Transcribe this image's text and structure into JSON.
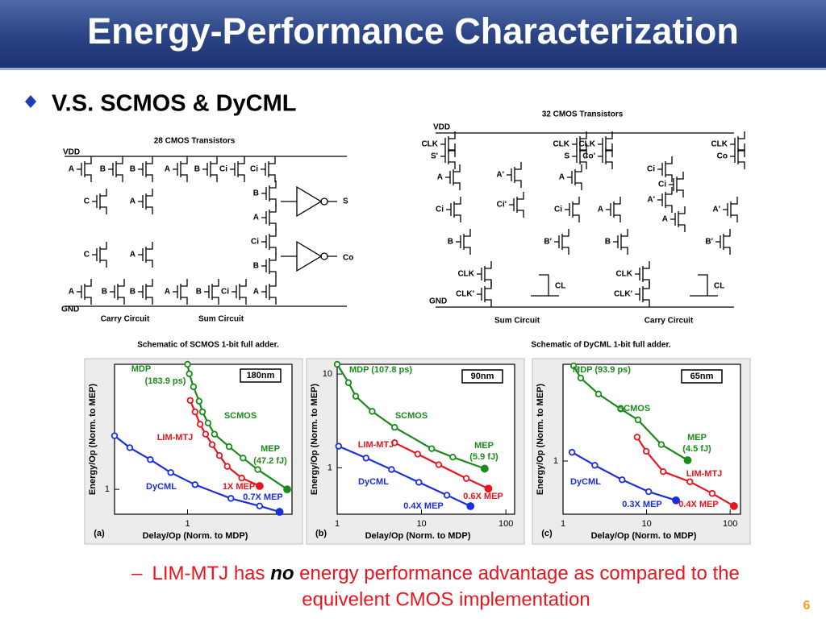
{
  "title": "Energy-Performance Characterization",
  "bullet": "V.S. SCMOS & DyCML",
  "schematics": [
    {
      "title": "28 CMOS Transistors",
      "vdd": "VDD",
      "gnd": "GND",
      "labels": [
        "A",
        "B",
        "B",
        "A",
        "B",
        "Ci",
        "Ci",
        "C",
        "A",
        "B",
        "A",
        "Ci",
        "B",
        "C",
        "A",
        "A",
        "B",
        "B",
        "A",
        "B",
        "Ci",
        "A"
      ],
      "outputs": [
        "S",
        "Co"
      ],
      "loads": [],
      "sections": [
        "Carry Circuit",
        "Sum Circuit"
      ],
      "caption": "Schematic of SCMOS 1-bit full adder."
    },
    {
      "title": "32 CMOS Transistors",
      "vdd": "VDD",
      "gnd": "GND",
      "labels": [
        "CLK",
        "S'",
        "CLK",
        "S",
        "CLK",
        "Co'",
        "CLK",
        "Co",
        "A",
        "A'",
        "A",
        "Ci",
        "Ci'",
        "Ci",
        "Ci",
        "Ci",
        "A'",
        "A",
        "A",
        "A'",
        "B",
        "B'",
        "B",
        "B'",
        "CLK",
        "CLK'",
        "CLK",
        "CLK'"
      ],
      "outputs": [],
      "loads": [
        "CL",
        "CL"
      ],
      "sections": [
        "Sum Circuit",
        "Carry Circuit"
      ],
      "caption": "Schematic of DyCML 1-bit full adder."
    }
  ],
  "chart_data": [
    {
      "type": "line",
      "panel": "(a)",
      "badge": "180nm",
      "x_label": "Delay/Op (Norm. to MDP)",
      "y_label": "Energy/Op (Norm. to MEP)",
      "xlog": true,
      "ylog": true,
      "xlim": [
        0.2,
        10
      ],
      "ylim": [
        0.6,
        13
      ],
      "xticks": [
        1
      ],
      "yticks": [
        1
      ],
      "annotations": [
        "MDP",
        "(183.9 ps)",
        "MEP",
        "(47.2 fJ)",
        "1X MEP",
        "0.7X MEP"
      ],
      "series": [
        {
          "name": "SCMOS",
          "color": "#1a8a1a",
          "x": [
            1.0,
            1.04,
            1.14,
            1.29,
            1.39,
            1.57,
            1.81,
            2.5,
            3.4,
            4.7,
            9.0
          ],
          "values": [
            13,
            10.7,
            8.2,
            6.1,
            4.9,
            3.9,
            3.1,
            2.4,
            1.9,
            1.5,
            1.0
          ]
        },
        {
          "name": "LIM-MTJ",
          "color": "#e8141e",
          "x": [
            1.06,
            1.18,
            1.32,
            1.49,
            1.72,
            2.02,
            2.4,
            3.3,
            4.9
          ],
          "values": [
            6.2,
            4.9,
            3.8,
            3.1,
            2.5,
            2.0,
            1.6,
            1.26,
            1.07
          ]
        },
        {
          "name": "DyCML",
          "color": "#1a2de0",
          "x": [
            0.2,
            0.28,
            0.44,
            0.69,
            1.18,
            2.6,
            4.9,
            7.6
          ],
          "values": [
            3.0,
            2.35,
            1.84,
            1.41,
            1.1,
            0.83,
            0.71,
            0.63
          ]
        }
      ]
    },
    {
      "type": "line",
      "panel": "(b)",
      "badge": "90nm",
      "x_label": "Delay/Op (Norm. to MDP)",
      "y_label": "Energy/Op (Norm. to MEP)",
      "xlog": true,
      "ylog": true,
      "xlim": [
        1,
        127
      ],
      "ylim": [
        0.32,
        12.7
      ],
      "xticks": [
        1,
        10,
        100
      ],
      "yticks": [
        1,
        10
      ],
      "annotations": [
        "MDP (107.8 ps)",
        "MEP",
        "(5.9 fJ)",
        "0.6X MEP",
        "0.4X MEP"
      ],
      "series": [
        {
          "name": "SCMOS",
          "color": "#1a8a1a",
          "x": [
            1,
            1.36,
            1.66,
            2.6,
            4.8,
            13.2,
            23.5,
            56
          ],
          "values": [
            12.7,
            8.1,
            5.8,
            4.0,
            2.7,
            1.6,
            1.3,
            0.98
          ]
        },
        {
          "name": "LIM-MTJ",
          "color": "#e8141e",
          "x": [
            4.8,
            9.0,
            16,
            34,
            62
          ],
          "values": [
            1.85,
            1.4,
            1.08,
            0.77,
            0.6
          ]
        },
        {
          "name": "DyCML",
          "color": "#1a2de0",
          "x": [
            1.04,
            2.2,
            4.4,
            9.3,
            20,
            38
          ],
          "values": [
            1.7,
            1.27,
            0.96,
            0.7,
            0.51,
            0.39
          ]
        }
      ]
    },
    {
      "type": "line",
      "panel": "(c)",
      "badge": "65nm",
      "x_label": "Delay/Op (Norm. to MDP)",
      "y_label": "Energy/Op (Norm. to MEP)",
      "xlog": true,
      "ylog": true,
      "xlim": [
        1,
        133
      ],
      "ylim": [
        0.27,
        10.8
      ],
      "xticks": [
        1,
        10,
        100
      ],
      "yticks": [
        1
      ],
      "annotations": [
        "MDP (93.9 ps)",
        "MEP",
        "(4.5 fJ)",
        "0.3X MEP",
        "0.4X MEP"
      ],
      "series": [
        {
          "name": "SCMOS",
          "color": "#1a8a1a",
          "x": [
            1.34,
            1.63,
            2.66,
            4.9,
            7.9,
            15,
            31
          ],
          "values": [
            10.4,
            7.7,
            5.2,
            3.6,
            2.75,
            1.5,
            1.02
          ]
        },
        {
          "name": "LIM-MTJ",
          "color": "#e8141e",
          "x": [
            7.7,
            9.9,
            15.8,
            33,
            61,
            111
          ],
          "values": [
            1.8,
            1.27,
            0.77,
            0.6,
            0.45,
            0.33
          ]
        },
        {
          "name": "DyCML",
          "color": "#1a2de0",
          "x": [
            1.28,
            2.4,
            5.1,
            10.6,
            22.5
          ],
          "values": [
            1.24,
            0.9,
            0.63,
            0.47,
            0.38
          ]
        }
      ]
    }
  ],
  "note": {
    "dash": "–",
    "prefix": "LIM-MTJ has ",
    "emphasis": "no",
    "suffix": " energy performance advantage as compared to the",
    "line2": "equivelent CMOS implementation"
  },
  "page_number": "6"
}
